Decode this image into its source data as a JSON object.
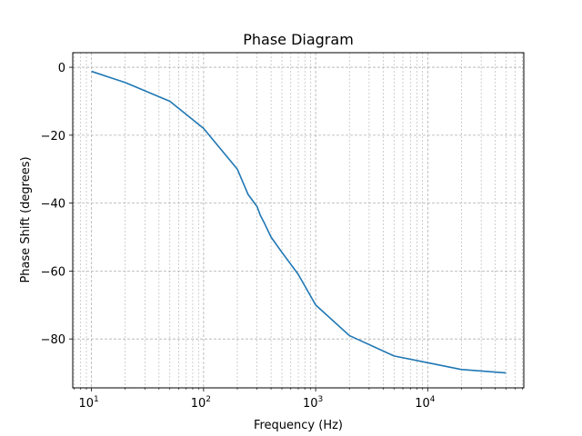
{
  "chart_data": {
    "type": "line",
    "title": "Phase Diagram",
    "xlabel": "Frequency (Hz)",
    "ylabel": "Phase Shift (degrees)",
    "x_scale": "log",
    "xlim": [
      6.8,
      72000
    ],
    "ylim": [
      -94.4,
      4.3
    ],
    "grid": true,
    "x_ticks": [
      {
        "value": 10,
        "base": "10",
        "exp": "1"
      },
      {
        "value": 100,
        "base": "10",
        "exp": "2"
      },
      {
        "value": 1000,
        "base": "10",
        "exp": "3"
      },
      {
        "value": 10000,
        "base": "10",
        "exp": "4"
      }
    ],
    "y_ticks": [
      {
        "value": 0,
        "label": "0"
      },
      {
        "value": -20,
        "label": "−20"
      },
      {
        "value": -40,
        "label": "−40"
      },
      {
        "value": -60,
        "label": "−60"
      },
      {
        "value": -80,
        "label": "−80"
      }
    ],
    "series": [
      {
        "color": "#1f77b4",
        "x": [
          10,
          20,
          50,
          100,
          200,
          250,
          300,
          320,
          350,
          400,
          500,
          700,
          1000,
          2000,
          5000,
          10000,
          20000,
          50000
        ],
        "y": [
          -1.2,
          -4.5,
          -10,
          -18,
          -30,
          -37.5,
          -41,
          -43.5,
          -46,
          -50,
          -54.5,
          -61,
          -70,
          -79,
          -85,
          -87,
          -89,
          -90
        ]
      }
    ]
  }
}
